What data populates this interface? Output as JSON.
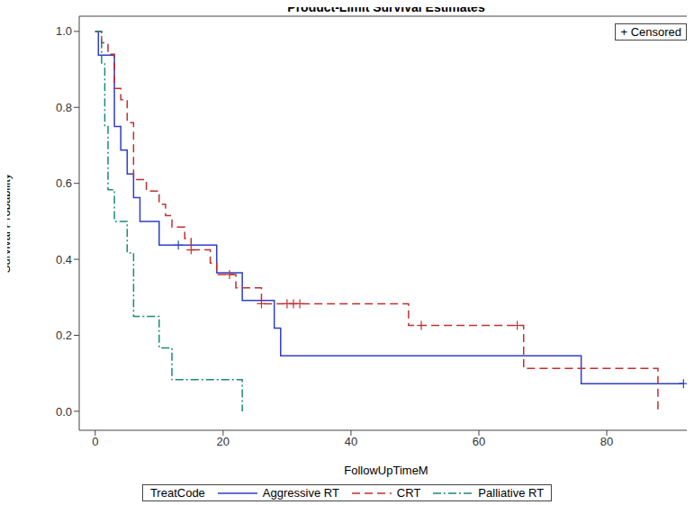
{
  "chart_data": {
    "type": "line",
    "title": "Product-Limit Survival Estimates",
    "x_label": "FollowUpTimeM",
    "y_label": "Survival Probability",
    "legend_title": "TreatCode",
    "censor_legend": "+ Censored",
    "xlim": [
      -2.5,
      93.5
    ],
    "xticks": [
      0,
      20,
      40,
      60,
      80
    ],
    "ylim": [
      -0.05,
      1.04
    ],
    "yticks": [
      {
        "value": 0,
        "label": "0.0"
      },
      0.2,
      0.4,
      0.6,
      0.8,
      {
        "value": 1,
        "label": "1.0"
      }
    ],
    "grid": false,
    "legend": "bottom",
    "series": [
      {
        "name": "Aggressive RT",
        "color": "#2f3fc8",
        "line_style": "solid",
        "x": [
          0,
          0.5,
          3,
          4,
          5,
          6,
          7,
          10,
          19,
          23,
          28,
          29,
          76,
          92
        ],
        "values": [
          1.0,
          0.9375,
          0.75,
          0.6875,
          0.625,
          0.5625,
          0.5,
          0.4375,
          0.3646,
          0.2917,
          0.2188,
          0.1458,
          0.0729,
          0.0729
        ],
        "censored": {
          "x": [
            13,
            92
          ],
          "values": [
            0.4375,
            0.0729
          ]
        }
      },
      {
        "name": "CRT",
        "color": "#c0302e",
        "line_style": "dashed",
        "x": [
          0,
          1,
          2,
          3,
          4,
          5,
          6,
          8,
          10,
          11,
          12,
          14,
          15,
          18,
          19,
          22,
          26,
          49,
          67,
          88
        ],
        "values": [
          1.0,
          0.97,
          0.94,
          0.85,
          0.82,
          0.76,
          0.61,
          0.58,
          0.545,
          0.515,
          0.485,
          0.455,
          0.425,
          0.39,
          0.36,
          0.325,
          0.283,
          0.226,
          0.113,
          0.0
        ],
        "censored": {
          "x": [
            15,
            21,
            26,
            30,
            31,
            32,
            51,
            66
          ],
          "values": [
            0.425,
            0.36,
            0.283,
            0.283,
            0.283,
            0.283,
            0.226,
            0.226
          ]
        }
      },
      {
        "name": "Palliative RT",
        "color": "#1a8a7a",
        "line_style": "dashdot",
        "x": [
          0,
          1,
          1.5,
          2,
          3,
          5,
          6,
          10,
          12,
          23
        ],
        "values": [
          1.0,
          0.917,
          0.75,
          0.583,
          0.5,
          0.417,
          0.25,
          0.167,
          0.083,
          0.0
        ],
        "censored": {
          "x": [],
          "values": []
        }
      }
    ]
  }
}
